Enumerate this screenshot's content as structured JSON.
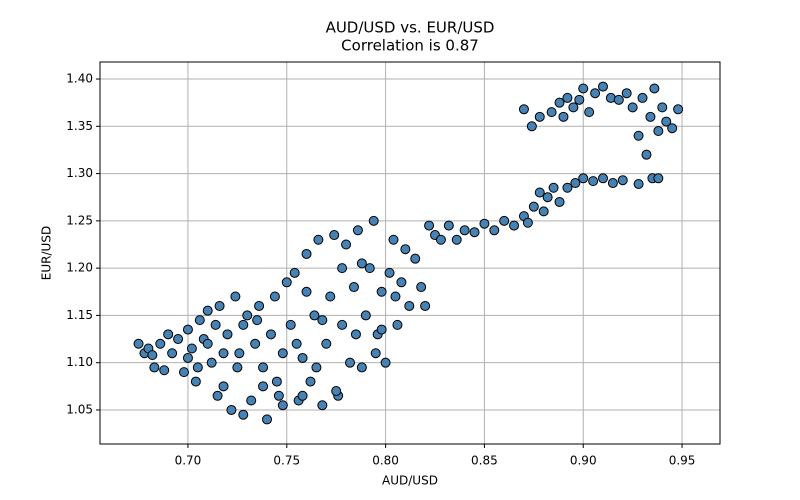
{
  "chart_data": {
    "type": "scatter",
    "title": "AUD/USD vs. EUR/USD",
    "subtitle": "Correlation is 0.87",
    "x_label": "AUD/USD",
    "y_label": "EUR/USD",
    "color": "#4682b4",
    "edge_color": "#000000",
    "grid": true,
    "xlim": [
      0.6555,
      0.9692
    ],
    "ylim": [
      1.014,
      1.418
    ],
    "xticks": [
      {
        "value": 0.7,
        "label": "0.70"
      },
      {
        "value": 0.75,
        "label": "0.75"
      },
      {
        "value": 0.8,
        "label": "0.80"
      },
      {
        "value": 0.85,
        "label": "0.85"
      },
      {
        "value": 0.9,
        "label": "0.90"
      },
      {
        "value": 0.95,
        "label": "0.95"
      }
    ],
    "yticks": [
      {
        "value": 1.05,
        "label": "1.05"
      },
      {
        "value": 1.1,
        "label": "1.10"
      },
      {
        "value": 1.15,
        "label": "1.15"
      },
      {
        "value": 1.2,
        "label": "1.20"
      },
      {
        "value": 1.25,
        "label": "1.25"
      },
      {
        "value": 1.3,
        "label": "1.30"
      },
      {
        "value": 1.35,
        "label": "1.35"
      },
      {
        "value": 1.4,
        "label": "1.40"
      }
    ],
    "x": [
      0.675,
      0.678,
      0.68,
      0.682,
      0.686,
      0.688,
      0.69,
      0.692,
      0.695,
      0.698,
      0.7,
      0.702,
      0.704,
      0.706,
      0.708,
      0.71,
      0.712,
      0.714,
      0.716,
      0.718,
      0.72,
      0.722,
      0.724,
      0.726,
      0.728,
      0.73,
      0.715,
      0.71,
      0.705,
      0.7,
      0.732,
      0.734,
      0.736,
      0.738,
      0.74,
      0.742,
      0.744,
      0.746,
      0.748,
      0.75,
      0.752,
      0.754,
      0.756,
      0.758,
      0.76,
      0.762,
      0.764,
      0.766,
      0.768,
      0.77,
      0.772,
      0.774,
      0.776,
      0.778,
      0.78,
      0.782,
      0.784,
      0.786,
      0.788,
      0.79,
      0.792,
      0.794,
      0.796,
      0.798,
      0.8,
      0.802,
      0.804,
      0.806,
      0.808,
      0.81,
      0.812,
      0.815,
      0.818,
      0.82,
      0.822,
      0.825,
      0.828,
      0.832,
      0.836,
      0.84,
      0.845,
      0.85,
      0.855,
      0.86,
      0.865,
      0.87,
      0.872,
      0.875,
      0.878,
      0.88,
      0.882,
      0.885,
      0.888,
      0.892,
      0.896,
      0.9,
      0.905,
      0.91,
      0.915,
      0.92,
      0.928,
      0.935,
      0.938,
      0.874,
      0.87,
      0.878,
      0.884,
      0.888,
      0.89,
      0.892,
      0.895,
      0.898,
      0.9,
      0.903,
      0.906,
      0.91,
      0.914,
      0.918,
      0.922,
      0.925,
      0.928,
      0.93,
      0.932,
      0.934,
      0.936,
      0.938,
      0.94,
      0.942,
      0.945,
      0.948,
      0.745,
      0.755,
      0.765,
      0.735,
      0.725,
      0.775,
      0.785,
      0.795,
      0.805,
      0.76,
      0.718,
      0.728,
      0.738,
      0.748,
      0.758,
      0.768,
      0.778,
      0.788,
      0.798,
      0.683
    ],
    "values": [
      1.12,
      1.11,
      1.115,
      1.108,
      1.12,
      1.092,
      1.13,
      1.11,
      1.125,
      1.09,
      1.135,
      1.115,
      1.08,
      1.145,
      1.125,
      1.155,
      1.1,
      1.14,
      1.16,
      1.075,
      1.13,
      1.05,
      1.17,
      1.11,
      1.045,
      1.15,
      1.065,
      1.12,
      1.095,
      1.105,
      1.06,
      1.12,
      1.16,
      1.095,
      1.04,
      1.13,
      1.17,
      1.065,
      1.11,
      1.185,
      1.14,
      1.195,
      1.06,
      1.105,
      1.215,
      1.08,
      1.15,
      1.23,
      1.055,
      1.12,
      1.17,
      1.235,
      1.065,
      1.14,
      1.225,
      1.1,
      1.18,
      1.24,
      1.095,
      1.15,
      1.2,
      1.25,
      1.13,
      1.175,
      1.1,
      1.195,
      1.23,
      1.14,
      1.185,
      1.22,
      1.16,
      1.21,
      1.18,
      1.16,
      1.245,
      1.235,
      1.23,
      1.245,
      1.23,
      1.24,
      1.238,
      1.247,
      1.24,
      1.25,
      1.245,
      1.255,
      1.248,
      1.265,
      1.28,
      1.26,
      1.275,
      1.285,
      1.27,
      1.285,
      1.29,
      1.295,
      1.292,
      1.295,
      1.29,
      1.293,
      1.289,
      1.295,
      1.295,
      1.35,
      1.368,
      1.36,
      1.365,
      1.375,
      1.36,
      1.38,
      1.37,
      1.378,
      1.39,
      1.365,
      1.385,
      1.392,
      1.38,
      1.378,
      1.385,
      1.37,
      1.34,
      1.38,
      1.32,
      1.36,
      1.39,
      1.345,
      1.37,
      1.355,
      1.348,
      1.368,
      1.08,
      1.12,
      1.095,
      1.145,
      1.095,
      1.07,
      1.13,
      1.11,
      1.17,
      1.175,
      1.11,
      1.14,
      1.075,
      1.055,
      1.065,
      1.145,
      1.2,
      1.205,
      1.135,
      1.095
    ]
  }
}
